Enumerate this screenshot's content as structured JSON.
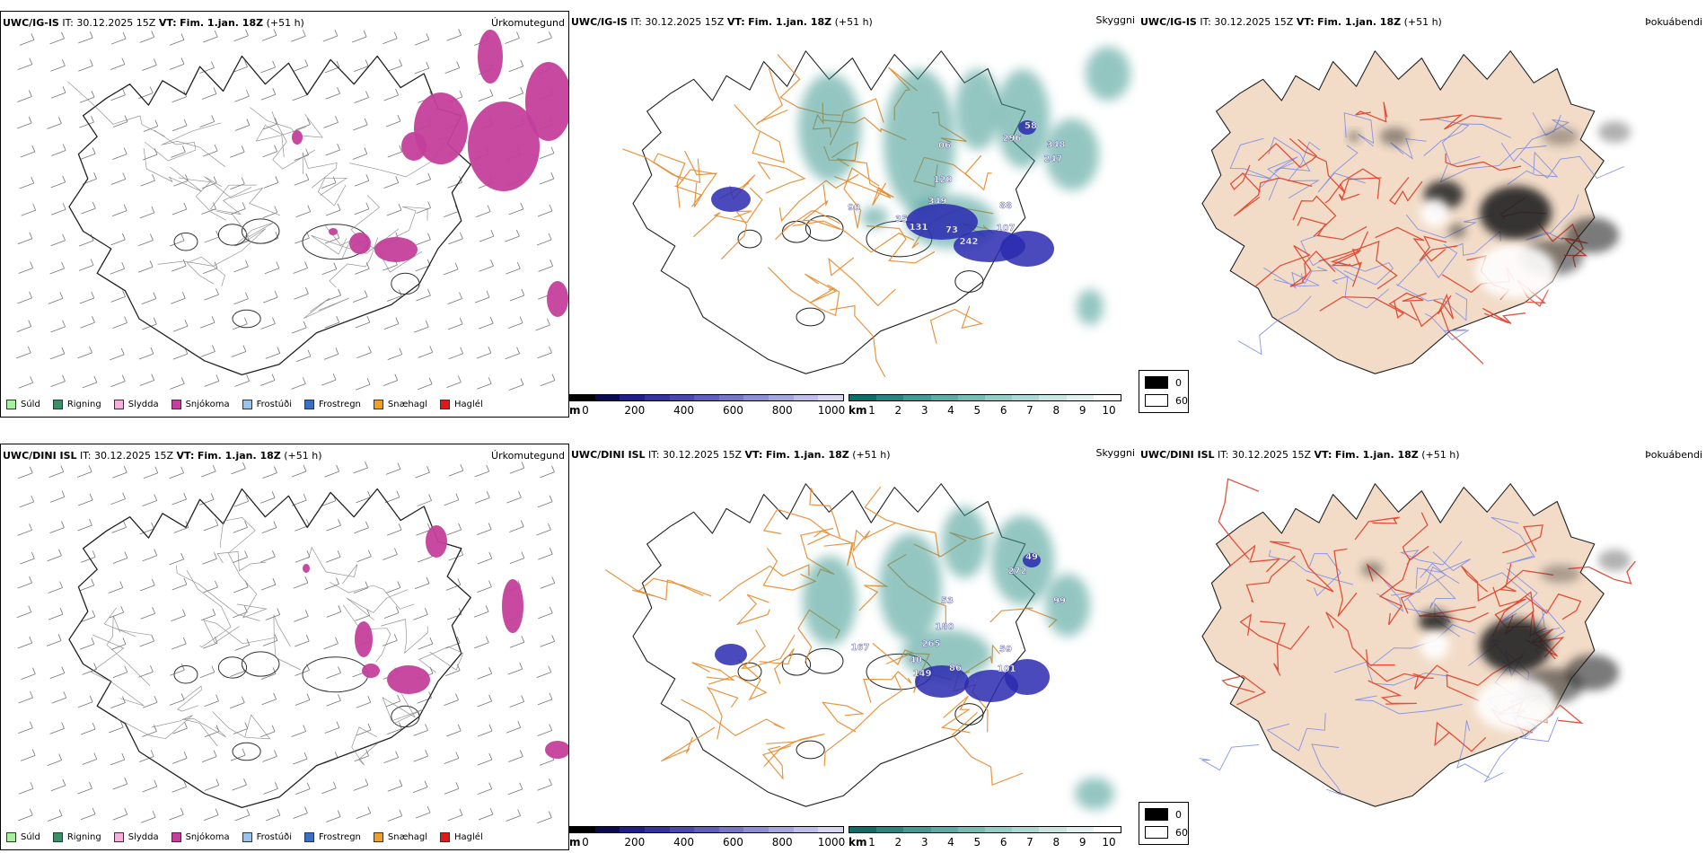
{
  "rows": [
    {
      "model": "UWC/IG-IS",
      "it_label": "IT:",
      "it_value": "30.12.2025 15Z",
      "vt_label": "VT:",
      "vt_value": "Fim. 1.jan. 18Z",
      "lead": "(+51 h)",
      "precip_title": "Úrkomutegund",
      "cloud_title": "Skyggni",
      "fog_title": "Þokuábendi",
      "labels": [
        {
          "t": "06"
        },
        {
          "t": "296"
        },
        {
          "t": "58"
        },
        {
          "t": "348"
        },
        {
          "t": "247"
        },
        {
          "t": "120"
        },
        {
          "t": "90"
        },
        {
          "t": "349"
        },
        {
          "t": "35"
        },
        {
          "t": "131"
        },
        {
          "t": "73"
        },
        {
          "t": "242"
        },
        {
          "t": "88"
        },
        {
          "t": "107"
        }
      ]
    },
    {
      "model": "UWC/DINI ISL",
      "it_label": "IT:",
      "it_value": "30.12.2025 15Z",
      "vt_label": "VT:",
      "vt_value": "Fim. 1.jan. 18Z",
      "lead": "(+51 h)",
      "precip_title": "Úrkomutegund",
      "cloud_title": "Skyggni",
      "fog_title": "Þokuábendi",
      "labels": [
        {
          "t": "49"
        },
        {
          "t": "272"
        },
        {
          "t": "99"
        },
        {
          "t": "53"
        },
        {
          "t": "180"
        },
        {
          "t": "265"
        },
        {
          "t": "167"
        },
        {
          "t": "40"
        },
        {
          "t": "149"
        },
        {
          "t": "86"
        },
        {
          "t": "59"
        },
        {
          "t": "101"
        }
      ]
    }
  ],
  "precip_legend": [
    {
      "label": "Súld",
      "color": "#a8f0a0"
    },
    {
      "label": "Rigning",
      "color": "#3a8f64"
    },
    {
      "label": "Slydda",
      "color": "#f4b0d8"
    },
    {
      "label": "Snjókoma",
      "color": "#c43f9b"
    },
    {
      "label": "Frostúði",
      "color": "#9ac4ee"
    },
    {
      "label": "Frostregn",
      "color": "#3a6fc4"
    },
    {
      "label": "Snæhagl",
      "color": "#f0a020"
    },
    {
      "label": "Haglél",
      "color": "#e01818"
    }
  ],
  "ceiling_bar": {
    "unit": "m",
    "ticks": [
      "0",
      "200",
      "400",
      "600",
      "800",
      "1000"
    ],
    "colors": [
      "#000000",
      "#0a0a50",
      "#1e1e8c",
      "#3232a0",
      "#4848b0",
      "#5e5ebe",
      "#7676c8",
      "#8e8ed4",
      "#a6a6de",
      "#bebee8",
      "#d6d6f2"
    ]
  },
  "vis_bar": {
    "unit": "km",
    "ticks": [
      "1",
      "2",
      "3",
      "4",
      "5",
      "6",
      "7",
      "8",
      "9",
      "10"
    ],
    "colors": [
      "#0e6e6a",
      "#2a8480",
      "#449a94",
      "#5eaca6",
      "#78bcb6",
      "#94ccc6",
      "#aed8d4",
      "#c8e6e2",
      "#e0f2f0",
      "#ffffff"
    ]
  },
  "fog_box": {
    "values": [
      "0",
      "60"
    ],
    "colors": [
      "#000000",
      "#ffffff"
    ]
  },
  "colors": {
    "snow": "#c43f9b",
    "cloud_teal": "#3c9890",
    "cloud_blue": "#2a2ab0",
    "road": "#e8892a",
    "land_fog": "#f2dcc8",
    "fog_road": "#e0402a",
    "fog_river": "#7b8ae8"
  }
}
